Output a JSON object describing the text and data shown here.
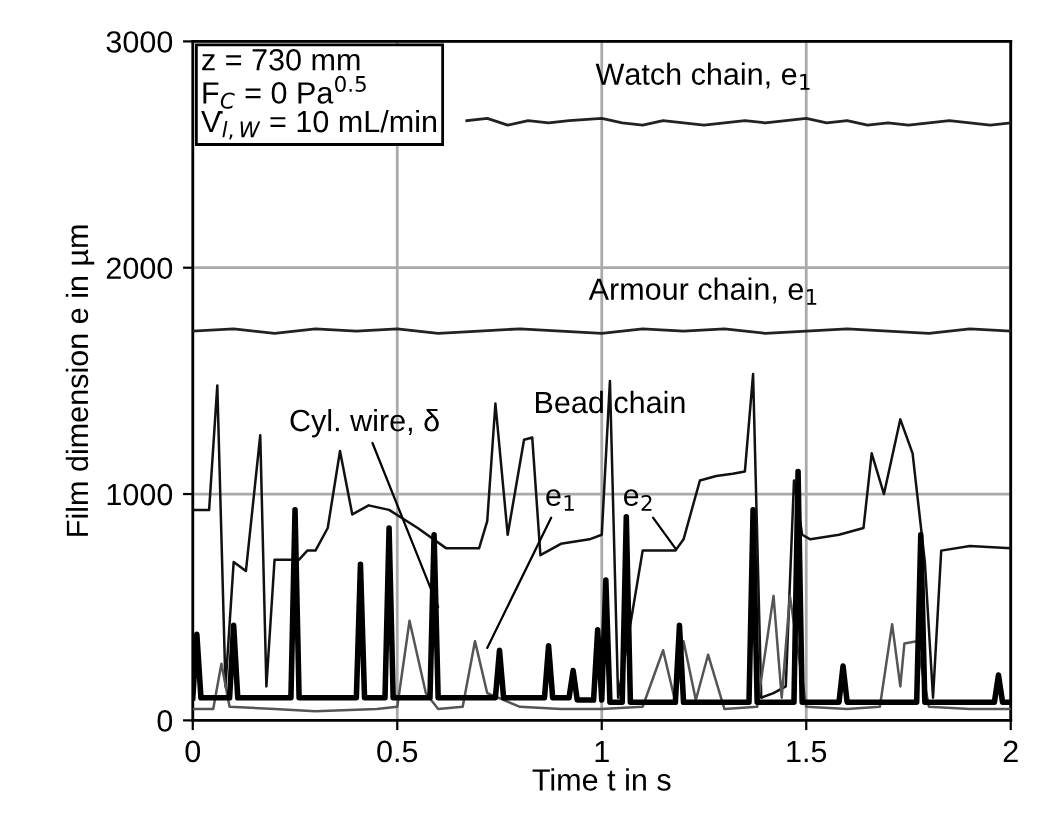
{
  "chart_data": {
    "type": "line",
    "xlabel": "Time t in s",
    "ylabel": "Film dimension e in µm",
    "xlim": [
      0,
      2
    ],
    "ylim": [
      0,
      3000
    ],
    "xticks": [
      0,
      0.5,
      1,
      1.5,
      2
    ],
    "yticks": [
      0,
      1000,
      2000,
      3000
    ],
    "grid": true,
    "marker": "none",
    "line_style": "solid",
    "series": [
      {
        "color": "#222222",
        "x": [
          0.67,
          0.72,
          0.77,
          0.82,
          0.87,
          0.92,
          1.0,
          1.05,
          1.1,
          1.15,
          1.2,
          1.25,
          1.3,
          1.35,
          1.4,
          1.45,
          1.5,
          1.55,
          1.6,
          1.65,
          1.7,
          1.75,
          1.8,
          1.85,
          1.9,
          1.95,
          2.0
        ],
        "values": [
          2650,
          2660,
          2630,
          2650,
          2640,
          2650,
          2660,
          2640,
          2630,
          2650,
          2640,
          2630,
          2640,
          2650,
          2640,
          2650,
          2660,
          2640,
          2650,
          2630,
          2640,
          2630,
          2640,
          2650,
          2640,
          2630,
          2640
        ]
      },
      {
        "color": "#222222",
        "x": [
          0,
          0.1,
          0.2,
          0.3,
          0.4,
          0.5,
          0.6,
          0.7,
          0.8,
          0.9,
          1.0,
          1.1,
          1.2,
          1.3,
          1.4,
          1.5,
          1.6,
          1.7,
          1.8,
          1.9,
          2.0
        ],
        "values": [
          1720,
          1730,
          1710,
          1730,
          1720,
          1730,
          1710,
          1720,
          1730,
          1720,
          1710,
          1730,
          1720,
          1730,
          1710,
          1720,
          1730,
          1720,
          1710,
          1730,
          1720
        ]
      },
      {
        "color": "#111111",
        "x": [
          0,
          0.02,
          0.04,
          0.06,
          0.08,
          0.1,
          0.13,
          0.165,
          0.18,
          0.2,
          0.26,
          0.28,
          0.3,
          0.33,
          0.36,
          0.39,
          0.43,
          0.48,
          0.55,
          0.62,
          0.7,
          0.72,
          0.74,
          0.77,
          0.81,
          0.83,
          0.85,
          0.9,
          0.97,
          1.0,
          1.02,
          1.04,
          1.1,
          1.18,
          1.2,
          1.24,
          1.28,
          1.32,
          1.35,
          1.37,
          1.39,
          1.42,
          1.45,
          1.47,
          1.49,
          1.51,
          1.58,
          1.64,
          1.66,
          1.69,
          1.73,
          1.76,
          1.79,
          1.81,
          1.83,
          1.9,
          2.0
        ],
        "values": [
          930,
          930,
          930,
          1480,
          150,
          700,
          660,
          1260,
          150,
          710,
          710,
          750,
          750,
          850,
          1190,
          910,
          950,
          930,
          850,
          760,
          760,
          880,
          1400,
          820,
          1240,
          1250,
          730,
          780,
          800,
          820,
          1500,
          100,
          750,
          750,
          800,
          1060,
          1080,
          1090,
          1100,
          1530,
          100,
          120,
          150,
          1060,
          820,
          800,
          820,
          850,
          1180,
          1000,
          1330,
          1180,
          700,
          100,
          750,
          770,
          760
        ]
      },
      {
        "color": "#555555",
        "x": [
          0,
          0.05,
          0.07,
          0.09,
          0.2,
          0.3,
          0.45,
          0.5,
          0.53,
          0.57,
          0.6,
          0.66,
          0.69,
          0.72,
          0.8,
          0.9,
          1.0,
          1.1,
          1.15,
          1.18,
          1.2,
          1.23,
          1.26,
          1.3,
          1.38,
          1.42,
          1.44,
          1.46,
          1.5,
          1.6,
          1.68,
          1.71,
          1.73,
          1.74,
          1.77,
          1.8,
          1.9,
          2.0
        ],
        "values": [
          50,
          50,
          250,
          60,
          50,
          40,
          50,
          60,
          440,
          120,
          50,
          60,
          350,
          120,
          60,
          50,
          50,
          60,
          310,
          80,
          350,
          90,
          290,
          50,
          60,
          550,
          100,
          550,
          60,
          50,
          60,
          425,
          150,
          340,
          350,
          60,
          50,
          50
        ]
      },
      {
        "color": "#000000",
        "x": [
          0,
          0.01,
          0.02,
          0.09,
          0.1,
          0.11,
          0.24,
          0.25,
          0.26,
          0.4,
          0.41,
          0.42,
          0.47,
          0.48,
          0.49,
          0.58,
          0.59,
          0.6,
          0.74,
          0.75,
          0.76,
          0.86,
          0.87,
          0.88,
          0.92,
          0.93,
          0.94,
          0.98,
          0.99,
          1.0,
          1.01,
          1.02,
          1.05,
          1.06,
          1.07,
          1.18,
          1.19,
          1.2,
          1.36,
          1.37,
          1.38,
          1.47,
          1.48,
          1.49,
          1.58,
          1.59,
          1.6,
          1.77,
          1.78,
          1.79,
          1.96,
          1.97,
          1.98,
          2.0
        ],
        "values": [
          100,
          380,
          100,
          100,
          420,
          100,
          100,
          930,
          100,
          100,
          690,
          100,
          100,
          850,
          100,
          100,
          820,
          100,
          100,
          310,
          100,
          100,
          330,
          100,
          100,
          220,
          90,
          90,
          400,
          90,
          620,
          80,
          80,
          900,
          80,
          80,
          420,
          80,
          80,
          930,
          80,
          80,
          1100,
          80,
          80,
          240,
          80,
          80,
          820,
          80,
          80,
          200,
          80,
          80
        ]
      }
    ],
    "annotations": [
      "z = 730 mm\nF$_{C}$ = 0 Pa$^{0.5}$\nV̇$_{l,W}$ = 10 mL/min",
      {
        "text": "Watch chain, e$_{1}$",
        "x": 1.25,
        "y": 2650
      },
      {
        "text": "Armour chain, e$_{1}$",
        "x": 1.25,
        "y": 1720
      },
      {
        "text": "Cyl. wire, δ",
        "x": 0.6,
        "y": 500
      },
      {
        "text": "Bead chain",
        "x": 1.02,
        "y": 1000
      },
      {
        "text": "e$_{1}$",
        "x": 0.72,
        "y": 320
      },
      {
        "text": "e$_{2}$",
        "x": 1.18,
        "y": 760
      }
    ]
  }
}
